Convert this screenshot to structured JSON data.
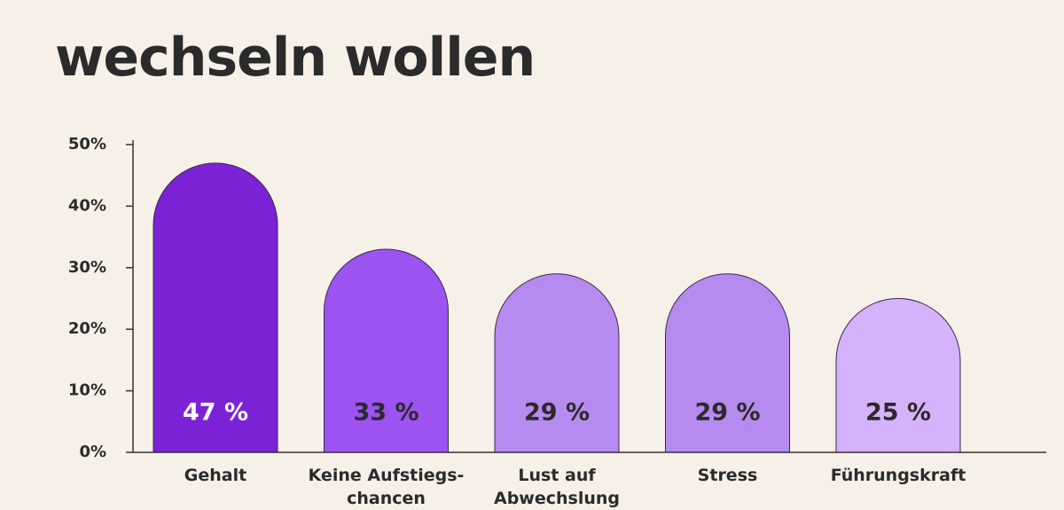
{
  "chart_data": {
    "type": "bar",
    "title": "wechseln wollen",
    "categories": [
      "Gehalt",
      "Keine Aufstiegs-\nchancen",
      "Lust auf\nAbwechslung",
      "Stress",
      "Führungskraft"
    ],
    "values": [
      47,
      33,
      29,
      29,
      25
    ],
    "value_labels": [
      "47 %",
      "33 %",
      "29 %",
      "29 %",
      "25 %"
    ],
    "colors": [
      "#7b22d6",
      "#9d52f2",
      "#b68bef",
      "#b68bef",
      "#d4b3fb"
    ],
    "ylim": [
      0,
      50
    ],
    "yticks": [
      {
        "value": 0,
        "label": "0%"
      },
      {
        "value": 10,
        "label": "10%"
      },
      {
        "value": 20,
        "label": "20%"
      },
      {
        "value": 30,
        "label": "30%"
      },
      {
        "value": 40,
        "label": "40%"
      },
      {
        "value": 50,
        "label": "50%"
      }
    ]
  }
}
